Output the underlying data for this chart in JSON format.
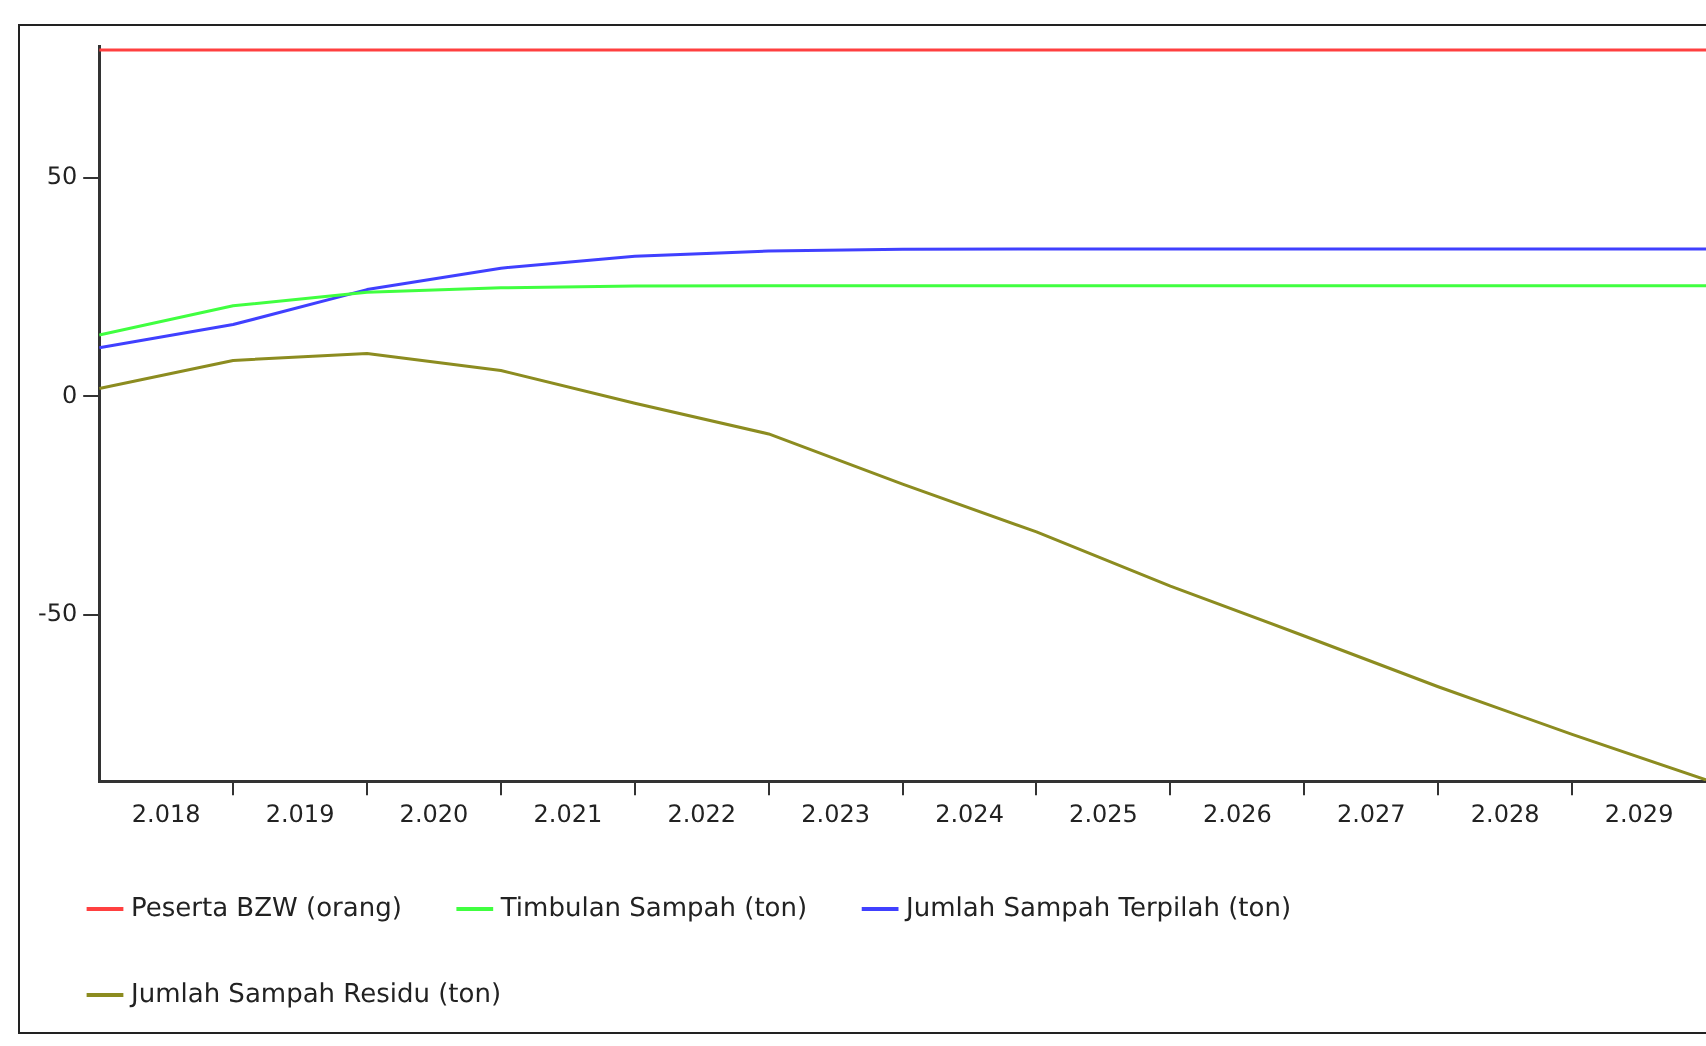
{
  "chart_data": {
    "type": "line",
    "x": [
      2018,
      2019,
      2020,
      2021,
      2022,
      2023,
      2024,
      2025,
      2026,
      2027,
      2028,
      2029,
      2030
    ],
    "xlim": [
      2018,
      2030
    ],
    "xticks": [
      {
        "value": 2018.5,
        "label": "2.018"
      },
      {
        "value": 2019,
        "label": null
      },
      {
        "value": 2019.5,
        "label": "2.019"
      },
      {
        "value": 2020,
        "label": null
      },
      {
        "value": 2020.5,
        "label": "2.020"
      },
      {
        "value": 2021,
        "label": null
      },
      {
        "value": 2021.5,
        "label": "2.021"
      },
      {
        "value": 2022,
        "label": null
      },
      {
        "value": 2022.5,
        "label": "2.022"
      },
      {
        "value": 2023,
        "label": null
      },
      {
        "value": 2023.5,
        "label": "2.023"
      },
      {
        "value": 2024,
        "label": null
      },
      {
        "value": 2024.5,
        "label": "2.024"
      },
      {
        "value": 2025,
        "label": null
      },
      {
        "value": 2025.5,
        "label": "2.025"
      },
      {
        "value": 2026,
        "label": null
      },
      {
        "value": 2026.5,
        "label": "2.026"
      },
      {
        "value": 2027,
        "label": null
      },
      {
        "value": 2027.5,
        "label": "2.027"
      },
      {
        "value": 2028,
        "label": null
      },
      {
        "value": 2028.5,
        "label": "2.028"
      },
      {
        "value": 2029,
        "label": null
      },
      {
        "value": 2029.5,
        "label": "2.029"
      }
    ],
    "ylim": [
      -88,
      80
    ],
    "yticks": [
      -50,
      0,
      50
    ],
    "series": [
      {
        "name": "Peserta BZW (orang)",
        "color": "#ff4040",
        "values": [
          79.2,
          79.2,
          79.2,
          79.2,
          79.2,
          79.2,
          79.2,
          79.2,
          79.2,
          79.2,
          79.2,
          79.2,
          79.2
        ]
      },
      {
        "name": "Timbulan Sampah (ton)",
        "color": "#40ff40",
        "values": [
          14,
          20.7,
          23.8,
          24.8,
          25.2,
          25.3,
          25.3,
          25.3,
          25.3,
          25.3,
          25.3,
          25.3,
          25.3
        ]
      },
      {
        "name": "Jumlah Sampah Terpilah (ton)",
        "color": "#4040ff",
        "values": [
          11.1,
          16.4,
          24.4,
          29.3,
          32,
          33.2,
          33.6,
          33.7,
          33.7,
          33.7,
          33.7,
          33.7,
          33.7
        ]
      },
      {
        "name": "Jumlah Sampah Residu (ton)",
        "color": "#8c8c20",
        "values": [
          1.8,
          8.2,
          9.8,
          5.9,
          -1.6,
          -8.6,
          -20.1,
          -31,
          -43.4,
          -54.8,
          -66.4,
          -77.3,
          -87.7
        ]
      }
    ],
    "grid": false,
    "legend": "bottom",
    "marker": "none",
    "line_style": "solid"
  }
}
